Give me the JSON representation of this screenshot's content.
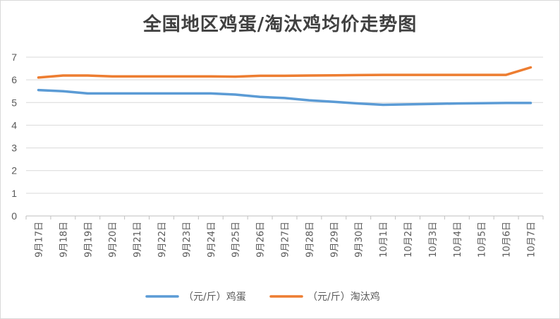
{
  "chart_data": {
    "type": "line",
    "title": "全国地区鸡蛋/淘汰鸡均价走势图",
    "categories": [
      "9月17日",
      "9月18日",
      "9月19日",
      "9月20日",
      "9月21日",
      "9月22日",
      "9月23日",
      "9月24日",
      "9月25日",
      "9月26日",
      "9月27日",
      "9月28日",
      "9月29日",
      "9月30日",
      "10月1日",
      "10月2日",
      "10月3日",
      "10月4日",
      "10月5日",
      "10月6日",
      "10月7日"
    ],
    "series": [
      {
        "name": "（元/斤）鸡蛋",
        "color": "#5b9bd5",
        "values": [
          5.55,
          5.5,
          5.4,
          5.4,
          5.4,
          5.4,
          5.4,
          5.4,
          5.35,
          5.25,
          5.2,
          5.1,
          5.03,
          4.96,
          4.9,
          4.92,
          4.94,
          4.96,
          4.97,
          4.98,
          4.98
        ]
      },
      {
        "name": "（元/斤）淘汰鸡",
        "color": "#ed7d31",
        "values": [
          6.1,
          6.19,
          6.19,
          6.15,
          6.15,
          6.15,
          6.15,
          6.15,
          6.14,
          6.18,
          6.18,
          6.19,
          6.2,
          6.21,
          6.22,
          6.22,
          6.22,
          6.22,
          6.22,
          6.22,
          6.55
        ]
      }
    ],
    "yticks": [
      "0",
      "1",
      "2",
      "3",
      "4",
      "5",
      "6",
      "7"
    ],
    "ylim": [
      0,
      7
    ],
    "grid": true,
    "legend": "bottom"
  }
}
